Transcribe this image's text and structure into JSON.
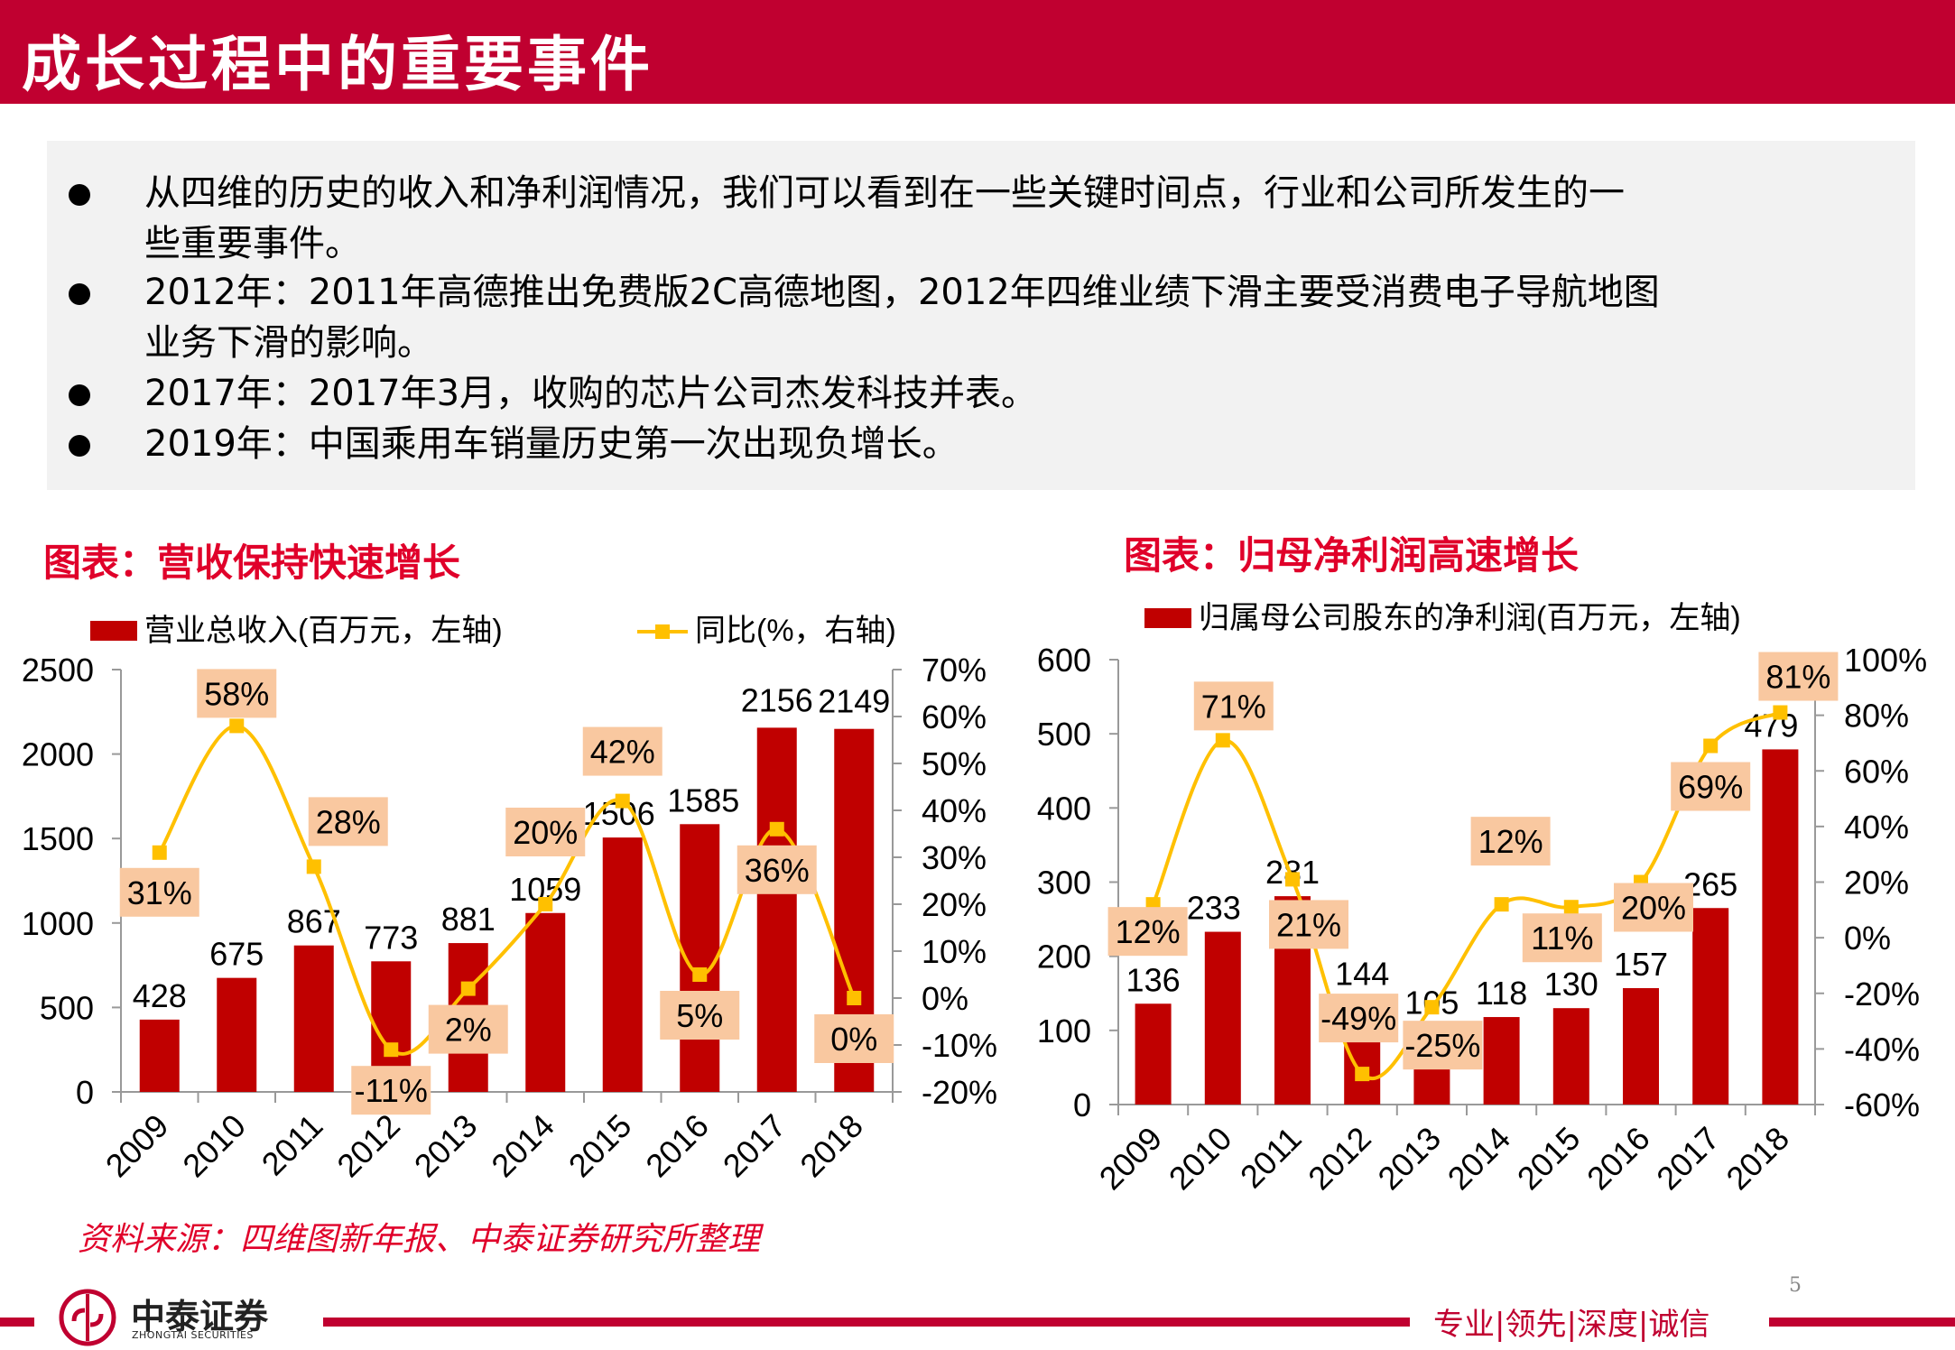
{
  "header": {
    "title": "成长过程中的重要事件"
  },
  "summary": {
    "bullets": [
      {
        "line1": "从四维的历史的收入和净利润情况，我们可以看到在一些关键时间点，行业和公司所发生的一",
        "line2": "些重要事件。"
      },
      {
        "line1": "2012年：2011年高德推出免费版2C高德地图，2012年四维业绩下滑主要受消费电子导航地图",
        "line2": "业务下滑的影响。"
      },
      {
        "line1": "2017年：2017年3月，收购的芯片公司杰发科技并表。",
        "line2": ""
      },
      {
        "line1": "2019年：中国乘用车销量历史第一次出现负增长。",
        "line2": ""
      }
    ]
  },
  "colors": {
    "brand": "#C00030",
    "bar": "#C00000",
    "line": "#FFC000",
    "label_box": "#F9C8A0",
    "chart_title": "#E0002A"
  },
  "chart_data": [
    {
      "type": "bar+line",
      "title": "图表：营收保持快速增长",
      "categories": [
        "2009",
        "2010",
        "2011",
        "2012",
        "2013",
        "2014",
        "2015",
        "2016",
        "2017",
        "2018"
      ],
      "series": [
        {
          "name": "营业总收入(百万元，左轴)",
          "type": "bar",
          "axis": "left",
          "values": [
            428,
            675,
            867,
            773,
            881,
            1059,
            1506,
            1585,
            2156,
            2149
          ],
          "labels": [
            "428",
            "675",
            "867",
            "773",
            "881",
            "1059",
            "1506",
            "1585",
            "2156",
            "2149"
          ]
        },
        {
          "name": "同比(%，右轴)",
          "type": "line",
          "axis": "right",
          "values": [
            31,
            58,
            28,
            -11,
            2,
            20,
            42,
            5,
            36,
            0
          ],
          "labels": [
            "31%",
            "58%",
            "28%",
            "-11%",
            "2%",
            "20%",
            "42%",
            "5%",
            "36%",
            "0%"
          ]
        }
      ],
      "left_axis": {
        "min": 0,
        "max": 2500,
        "ticks": [
          "0",
          "500",
          "1000",
          "1500",
          "2000",
          "2500"
        ]
      },
      "right_axis": {
        "min": -20,
        "max": 70,
        "ticks": [
          "-20%",
          "-10%",
          "0%",
          "10%",
          "20%",
          "30%",
          "40%",
          "50%",
          "60%",
          "70%"
        ]
      },
      "legend": "top",
      "grid": false
    },
    {
      "type": "bar+line",
      "title": "图表：归母净利润高速增长",
      "categories": [
        "2009",
        "2010",
        "2011",
        "2012",
        "2013",
        "2014",
        "2015",
        "2016",
        "2017",
        "2018"
      ],
      "series": [
        {
          "name": "归属母公司股东的净利润(百万元，左轴)",
          "type": "bar",
          "axis": "left",
          "values": [
            136,
            233,
            281,
            144,
            105,
            118,
            130,
            157,
            265,
            479
          ],
          "labels": [
            "136",
            "233",
            "281",
            "144",
            "105",
            "118",
            "130",
            "157",
            "265",
            "479"
          ]
        },
        {
          "type": "line",
          "axis": "right",
          "values": [
            12,
            71,
            21,
            -49,
            -25,
            12,
            11,
            20,
            69,
            81
          ],
          "labels": [
            "12%",
            "71%",
            "21%",
            "-49%",
            "-25%",
            "12%",
            "11%",
            "20%",
            "69%",
            "81%"
          ]
        }
      ],
      "left_axis": {
        "min": 0,
        "max": 600,
        "ticks": [
          "0",
          "100",
          "200",
          "300",
          "400",
          "500",
          "600"
        ]
      },
      "right_axis": {
        "min": -60,
        "max": 100,
        "ticks": [
          "-60%",
          "-40%",
          "-20%",
          "0%",
          "20%",
          "40%",
          "60%",
          "80%",
          "100%"
        ]
      },
      "legend": "top",
      "grid": false
    }
  ],
  "source": "资料来源：四维图新年报、中泰证券研究所整理",
  "footer": {
    "logo_cn": "中泰证券",
    "logo_en": "ZHONGTAI SECURITIES",
    "slogan": "专业|领先|深度|诚信",
    "page": "5"
  }
}
